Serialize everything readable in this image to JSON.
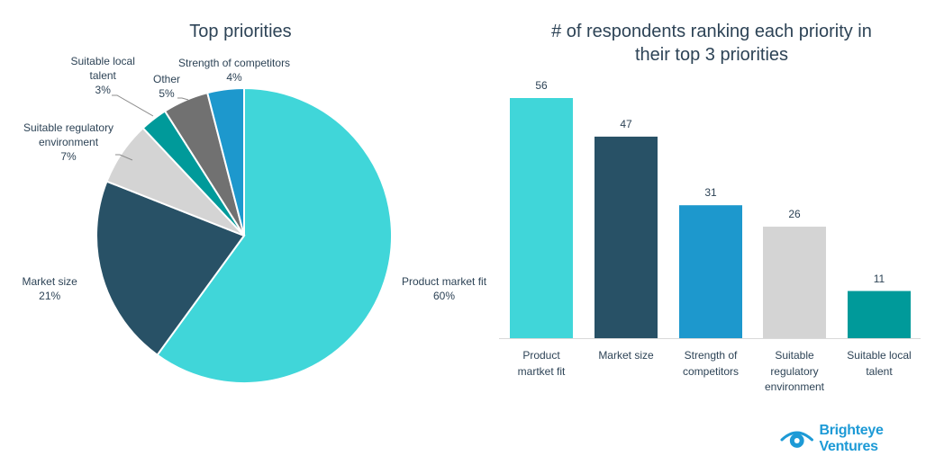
{
  "chart_data": [
    {
      "type": "pie",
      "title": "Top priorities",
      "start": "top",
      "direction": "clockwise",
      "slices": [
        {
          "label": "Product market fit",
          "value": 60,
          "value_label": "60%",
          "color": "#40d6d9"
        },
        {
          "label": "Market size",
          "value": 21,
          "value_label": "21%",
          "color": "#285166"
        },
        {
          "label": "Suitable regulatory environment",
          "value": 7,
          "value_label": "7%",
          "color": "#d4d4d4"
        },
        {
          "label": "Suitable local talent",
          "value": 3,
          "value_label": "3%",
          "color": "#009a9a"
        },
        {
          "label": "Other",
          "value": 5,
          "value_label": "5%",
          "color": "#717171"
        },
        {
          "label": "Strength of competitors",
          "value": 4,
          "value_label": "4%",
          "color": "#1d98cd"
        }
      ],
      "label_lines": {
        "Product market fit": [
          "Product market fit",
          "60%"
        ],
        "Market size": [
          "Market size",
          "21%"
        ],
        "Suitable regulatory environment": [
          "Suitable regulatory",
          "environment",
          "7%"
        ],
        "Suitable local talent": [
          "Suitable local",
          "talent",
          "3%"
        ],
        "Other": [
          "Other",
          "5%"
        ],
        "Strength of competitors": [
          "Strength of competitors",
          "4%"
        ]
      },
      "legend": "none"
    },
    {
      "type": "bar",
      "title": "# of respondents ranking each priority in their top 3 priorities",
      "title_lines": [
        "# of respondents ranking each priority in",
        "their top 3 priorities"
      ],
      "categories": [
        "Product martket fit",
        "Market size",
        "Strength of competitors",
        "Suitable regulatory environment",
        "Suitable local talent"
      ],
      "category_lines": [
        [
          "Product",
          "martket fit"
        ],
        [
          "Market size"
        ],
        [
          "Strength of",
          "competitors"
        ],
        [
          "Suitable",
          "regulatory",
          "environment"
        ],
        [
          "Suitable local",
          "talent"
        ]
      ],
      "values": [
        56,
        47,
        31,
        26,
        11
      ],
      "colors": [
        "#40d6d9",
        "#285166",
        "#1d98cd",
        "#d4d4d4",
        "#009a9a"
      ],
      "ylim": [
        0,
        56
      ],
      "grid": false,
      "xlabel": "",
      "ylabel": "",
      "data_labels": true
    }
  ],
  "branding": {
    "logo_icon": "eye-icon",
    "name": "Brighteye Ventures",
    "color": "#1d9ad6"
  }
}
